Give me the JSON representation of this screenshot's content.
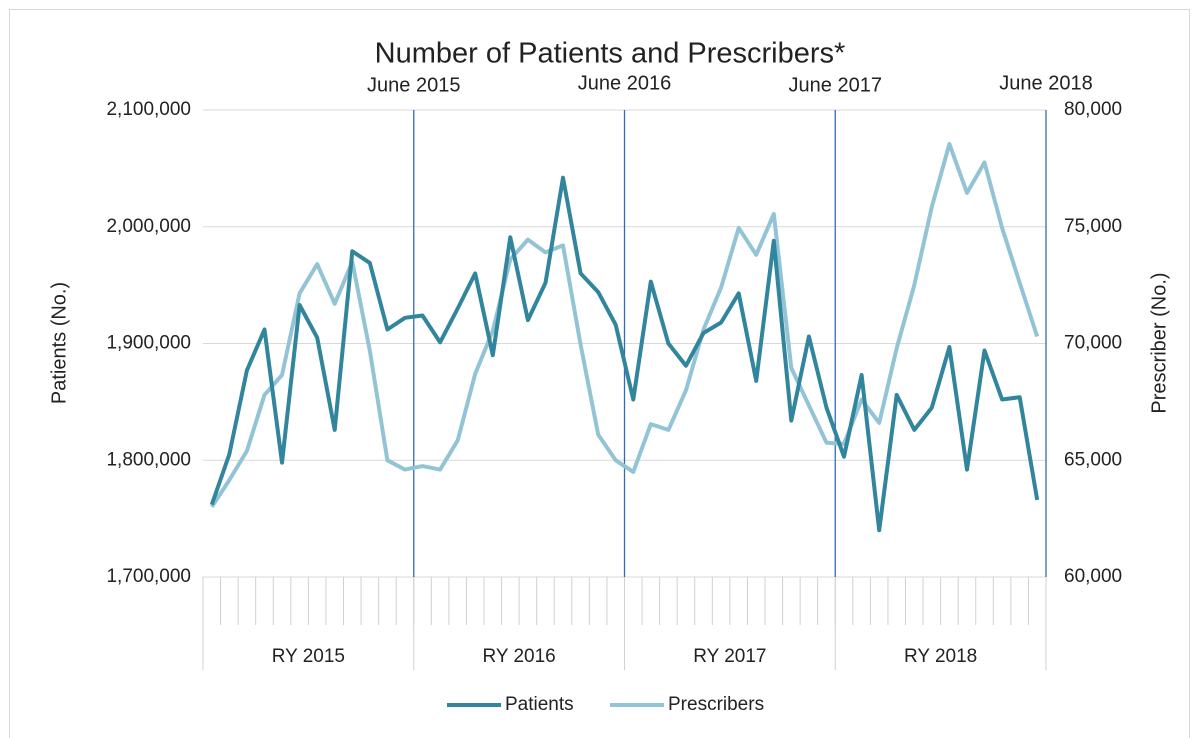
{
  "chart_data": {
    "type": "line",
    "title": "Number of Patients and Prescribers*",
    "ylabel": "Patients (No.)",
    "y2label": "Prescriber (No.)",
    "categories": [
      null,
      null,
      null,
      null,
      null,
      null,
      null,
      null,
      null,
      null,
      null,
      null,
      null,
      null,
      null,
      null,
      null,
      null,
      null,
      null,
      null,
      null,
      null,
      null,
      null,
      null,
      null,
      null,
      null,
      null,
      null,
      null,
      null,
      null,
      null,
      null,
      null,
      null,
      null,
      null,
      null,
      null,
      null,
      null,
      null,
      null,
      null,
      null
    ],
    "groups": [
      "RY 2015",
      "RY 2016",
      "RY 2017",
      "RY 2018"
    ],
    "annotations": [
      "June 2015",
      "June 2016",
      "June 2017",
      "June 2018"
    ],
    "annotation_color": "#2e6db4",
    "ylim": [
      1700000,
      2100000
    ],
    "yticks": [
      {
        "value": 1700000,
        "label": "1,700,000"
      },
      {
        "value": 1800000,
        "label": "1,800,000"
      },
      {
        "value": 1900000,
        "label": "1,900,000"
      },
      {
        "value": 2000000,
        "label": "2,000,000"
      },
      {
        "value": 2100000,
        "label": "2,100,000"
      }
    ],
    "y2lim": [
      60000,
      80000
    ],
    "y2ticks": [
      {
        "value": 60000,
        "label": "60,000"
      },
      {
        "value": 65000,
        "label": "65,000"
      },
      {
        "value": 70000,
        "label": "70,000"
      },
      {
        "value": 75000,
        "label": "75,000"
      },
      {
        "value": 80000,
        "label": "80,000"
      }
    ],
    "grid": true,
    "legend": "bottom",
    "series": [
      {
        "name": "Patients",
        "color": "#31859c",
        "values": [
          1762000,
          1805000,
          1877000,
          1912000,
          1798000,
          1933000,
          1905000,
          1826000,
          1979000,
          1969000,
          1912000,
          1922000,
          1924000,
          1901000,
          1930000,
          1960000,
          1890000,
          1991000,
          1920000,
          1952000,
          2042000,
          1960000,
          1944000,
          1916000,
          1852000,
          1953000,
          1900000,
          1881000,
          1909000,
          1918000,
          1943000,
          1868000,
          1988000,
          1834000,
          1906000,
          1845000,
          1803000,
          1873000,
          1740000,
          1856000,
          1826000,
          1845000,
          1897000,
          1792000,
          1894000,
          1852000,
          1854000,
          1766000
        ]
      },
      {
        "name": "Prescribers",
        "color": "#93c4d5",
        "axis": "y2",
        "values": [
          63000,
          64150,
          65400,
          67800,
          68650,
          72150,
          73400,
          71700,
          73500,
          69700,
          65000,
          64600,
          64750,
          64600,
          65850,
          68700,
          70550,
          73600,
          74450,
          73900,
          74200,
          69950,
          66100,
          65000,
          64500,
          66550,
          66300,
          68000,
          70600,
          72400,
          74950,
          73800,
          75550,
          68950,
          67350,
          65750,
          65700,
          67600,
          66600,
          69800,
          72500,
          75850,
          78550,
          76450,
          77750,
          74950,
          72600,
          70300
        ]
      }
    ]
  }
}
